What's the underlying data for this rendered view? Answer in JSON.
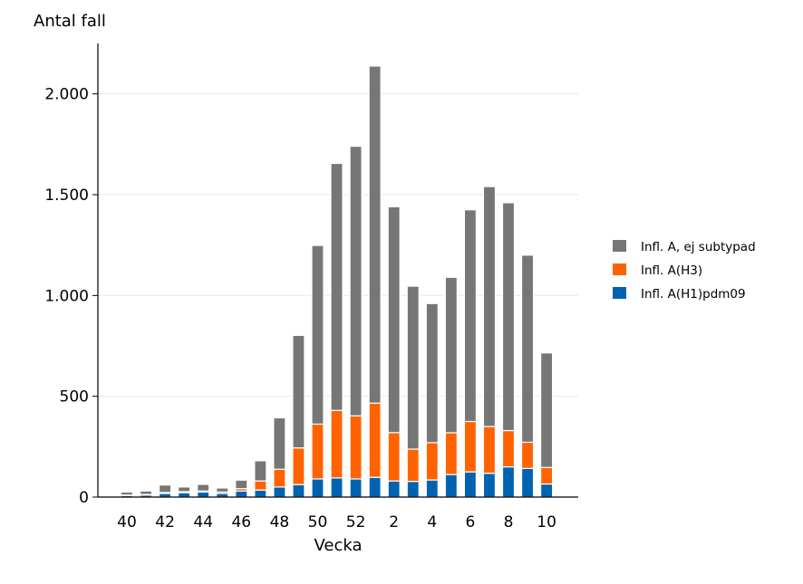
{
  "chart_data": {
    "type": "bar",
    "stacked": true,
    "ylabel": "Antal fall",
    "xlabel": "Vecka",
    "ylim": [
      0,
      2250
    ],
    "yticks": [
      0,
      500,
      1000,
      1500,
      2000
    ],
    "ytick_labels": [
      "0",
      "500",
      "1.000",
      "1.500",
      "2.000"
    ],
    "categories": [
      "40",
      "41",
      "42",
      "43",
      "44",
      "45",
      "46",
      "47",
      "48",
      "49",
      "50",
      "51",
      "52",
      "1",
      "2",
      "3",
      "4",
      "5",
      "6",
      "7",
      "8",
      "9",
      "10"
    ],
    "xtick_labels": [
      "40",
      "",
      "42",
      "",
      "44",
      "",
      "46",
      "",
      "48",
      "",
      "50",
      "",
      "52",
      "",
      "2",
      "",
      "4",
      "",
      "6",
      "",
      "8",
      "",
      "10"
    ],
    "series": [
      {
        "name": "Infl. A(H1)pdm09",
        "color": "#0063b0",
        "values": [
          8,
          10,
          18,
          22,
          25,
          18,
          30,
          35,
          50,
          62,
          90,
          95,
          90,
          98,
          80,
          78,
          85,
          112,
          125,
          118,
          150,
          142,
          65
        ]
      },
      {
        "name": "Infl. A(H3)",
        "color": "#ff6300",
        "values": [
          2,
          3,
          5,
          5,
          5,
          7,
          12,
          45,
          88,
          182,
          272,
          335,
          313,
          368,
          240,
          160,
          185,
          207,
          250,
          232,
          180,
          130,
          82
        ]
      },
      {
        "name": "Infl. A, ej subtypad",
        "color": "#767676",
        "values": [
          15,
          17,
          37,
          23,
          33,
          20,
          42,
          100,
          255,
          558,
          886,
          1225,
          1337,
          1672,
          1120,
          808,
          690,
          771,
          1050,
          1190,
          1130,
          928,
          568
        ]
      }
    ],
    "legend": {
      "position": "right",
      "order": [
        "Infl. A, ej subtypad",
        "Infl. A(H3)",
        "Infl. A(H1)pdm09"
      ]
    },
    "grid": true
  }
}
